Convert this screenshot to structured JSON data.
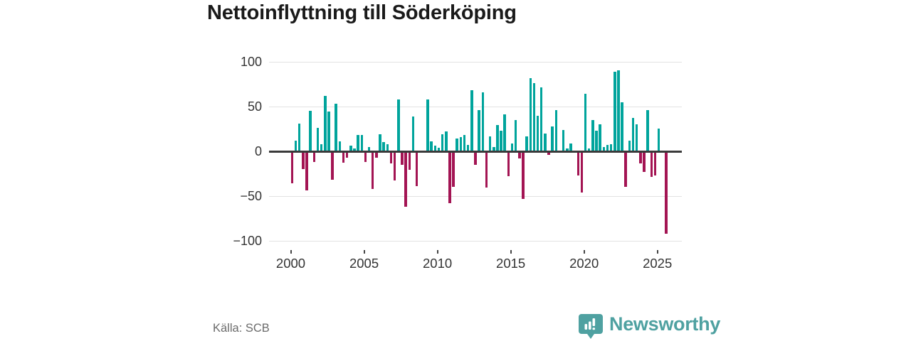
{
  "chart": {
    "title": "Nettoinflyttning till Söderköping",
    "y_tick_labels": [
      "100",
      "50",
      "0",
      "−50",
      "−100"
    ],
    "y_tick_values": [
      100,
      50,
      0,
      -50,
      -100
    ],
    "x_tick_labels": [
      "2000",
      "2005",
      "2010",
      "2015",
      "2020",
      "2025"
    ],
    "x_tick_years": [
      2000,
      2005,
      2010,
      2015,
      2020,
      2025
    ],
    "colors": {
      "positive_bar": "#00a49c",
      "negative_bar": "#a31453",
      "zero_line": "#3a3a3a",
      "gridline": "#e2e2e2",
      "tick_text": "#333333"
    }
  },
  "chart_data": {
    "type": "bar",
    "title": "Nettoinflyttning till Söderköping",
    "xlabel": "",
    "ylabel": "",
    "ylim": [
      -100,
      100
    ],
    "grid": true,
    "legend": false,
    "unit": "persons (net migration per quarter)",
    "x": [
      "2000Q1",
      "2000Q2",
      "2000Q3",
      "2000Q4",
      "2001Q1",
      "2001Q2",
      "2001Q3",
      "2001Q4",
      "2002Q1",
      "2002Q2",
      "2002Q3",
      "2002Q4",
      "2003Q1",
      "2003Q2",
      "2003Q3",
      "2003Q4",
      "2004Q1",
      "2004Q2",
      "2004Q3",
      "2004Q4",
      "2005Q1",
      "2005Q2",
      "2005Q3",
      "2005Q4",
      "2006Q1",
      "2006Q2",
      "2006Q3",
      "2006Q4",
      "2007Q1",
      "2007Q2",
      "2007Q3",
      "2007Q4",
      "2008Q1",
      "2008Q2",
      "2008Q3",
      "2008Q4",
      "2009Q1",
      "2009Q2",
      "2009Q3",
      "2009Q4",
      "2010Q1",
      "2010Q2",
      "2010Q3",
      "2010Q4",
      "2011Q1",
      "2011Q2",
      "2011Q3",
      "2011Q4",
      "2012Q1",
      "2012Q2",
      "2012Q3",
      "2012Q4",
      "2013Q1",
      "2013Q2",
      "2013Q3",
      "2013Q4",
      "2014Q1",
      "2014Q2",
      "2014Q3",
      "2014Q4",
      "2015Q1",
      "2015Q2",
      "2015Q3",
      "2015Q4",
      "2016Q1",
      "2016Q2",
      "2016Q3",
      "2016Q4",
      "2017Q1",
      "2017Q2",
      "2017Q3",
      "2017Q4",
      "2018Q1",
      "2018Q2",
      "2018Q3",
      "2018Q4",
      "2019Q1",
      "2019Q2",
      "2019Q3",
      "2019Q4",
      "2020Q1",
      "2020Q2",
      "2020Q3",
      "2020Q4",
      "2021Q1",
      "2021Q2",
      "2021Q3",
      "2021Q4",
      "2022Q1",
      "2022Q2",
      "2022Q3",
      "2022Q4",
      "2023Q1",
      "2023Q2",
      "2023Q3",
      "2023Q4",
      "2024Q1",
      "2024Q2",
      "2024Q3",
      "2024Q4",
      "2025Q1",
      "2025Q2",
      "2025Q3"
    ],
    "values": [
      -35,
      12,
      31,
      -19,
      -43,
      45,
      -11,
      26,
      8,
      62,
      44,
      -31,
      53,
      11,
      -12,
      -6,
      6,
      3,
      18,
      18,
      -11,
      5,
      -41,
      -6,
      19,
      10,
      8,
      -13,
      -32,
      58,
      -14,
      -61,
      -20,
      39,
      -38,
      0,
      0,
      58,
      11,
      6,
      4,
      19,
      22,
      -57,
      -39,
      14,
      16,
      18,
      7,
      68,
      -14,
      46,
      66,
      -40,
      17,
      5,
      29,
      23,
      41,
      -27,
      9,
      35,
      -7,
      -52,
      17,
      82,
      76,
      40,
      71,
      20,
      -3,
      28,
      46,
      0,
      24,
      3,
      9,
      0,
      -26,
      -45,
      64,
      3,
      35,
      23,
      30,
      5,
      7,
      8,
      89,
      90,
      55,
      -39,
      12,
      37,
      30,
      -13,
      -22,
      46,
      -28,
      -26,
      25,
      0,
      -91
    ]
  },
  "footer": {
    "source": "Källa: SCB",
    "brand": "Newsworthy",
    "brand_color": "#4fa1a1"
  }
}
